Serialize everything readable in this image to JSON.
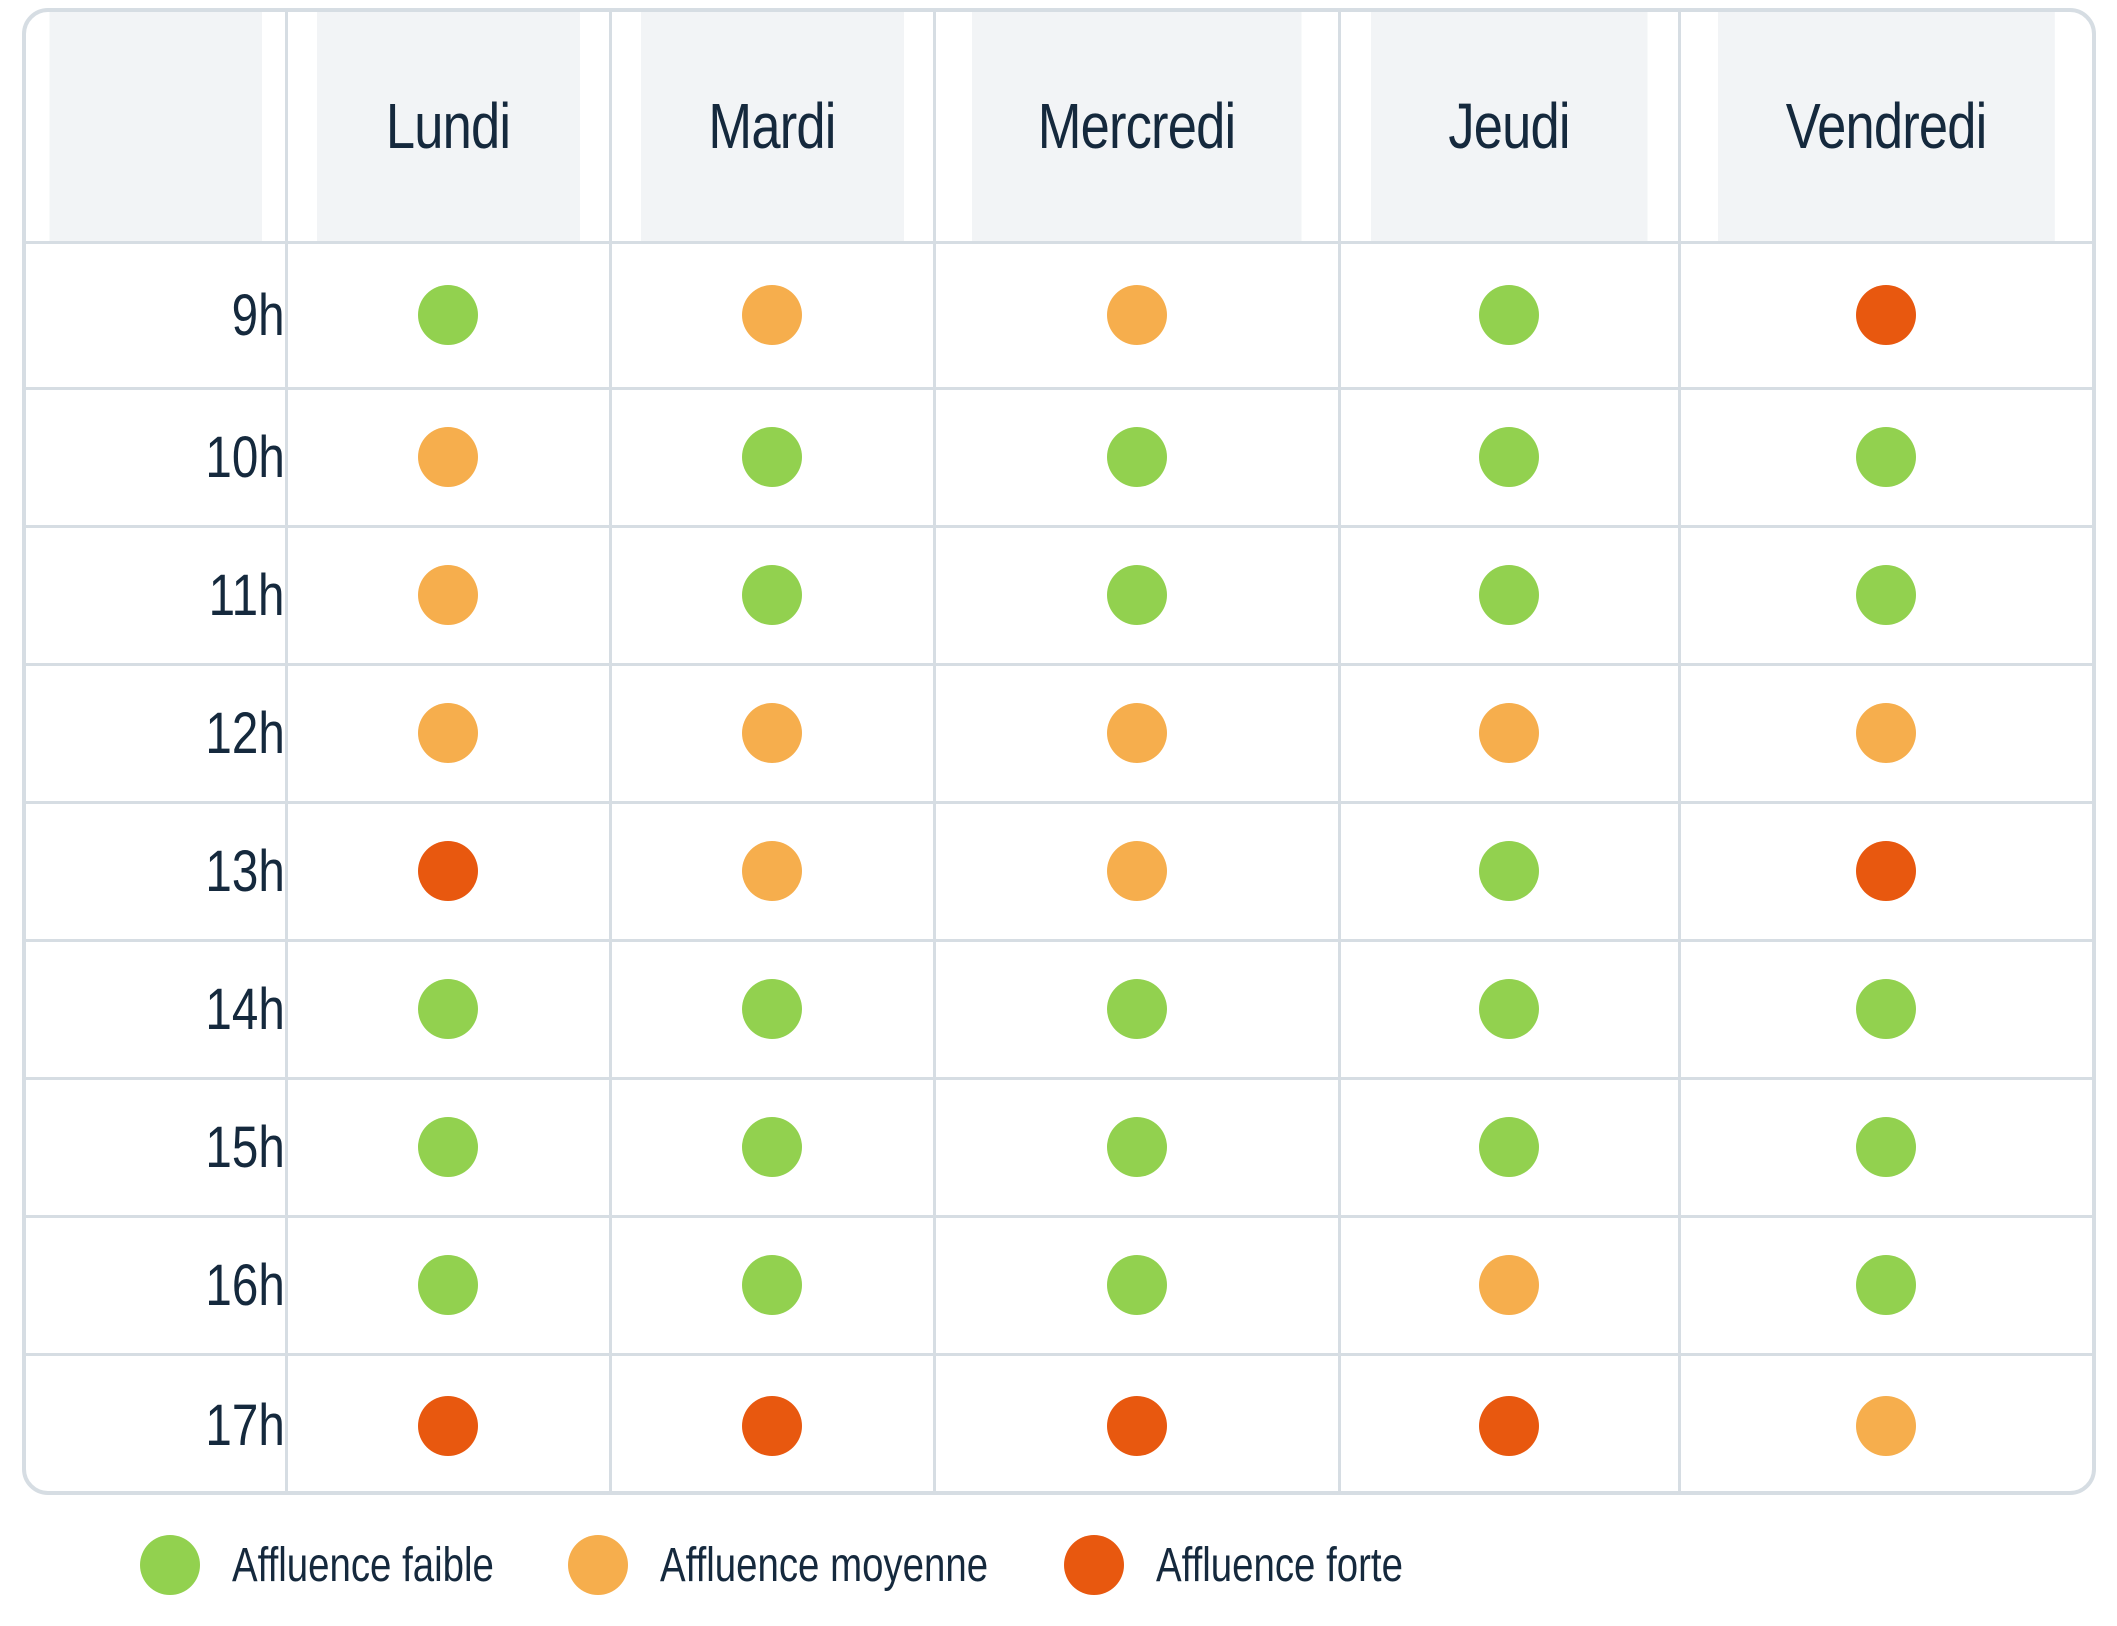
{
  "colors": {
    "faible": "#92d14f",
    "moyenne": "#f6ae4d",
    "forte": "#e8580f"
  },
  "table": {
    "days": [
      "Lundi",
      "Mardi",
      "Mercredi",
      "Jeudi",
      "Vendredi"
    ],
    "rows": [
      {
        "hour": "9h",
        "levels": [
          "faible",
          "moyenne",
          "moyenne",
          "faible",
          "forte"
        ]
      },
      {
        "hour": "10h",
        "levels": [
          "moyenne",
          "faible",
          "faible",
          "faible",
          "faible"
        ]
      },
      {
        "hour": "11h",
        "levels": [
          "moyenne",
          "faible",
          "faible",
          "faible",
          "faible"
        ]
      },
      {
        "hour": "12h",
        "levels": [
          "moyenne",
          "moyenne",
          "moyenne",
          "moyenne",
          "moyenne"
        ]
      },
      {
        "hour": "13h",
        "levels": [
          "forte",
          "moyenne",
          "moyenne",
          "faible",
          "forte"
        ]
      },
      {
        "hour": "14h",
        "levels": [
          "faible",
          "faible",
          "faible",
          "faible",
          "faible"
        ]
      },
      {
        "hour": "15h",
        "levels": [
          "faible",
          "faible",
          "faible",
          "faible",
          "faible"
        ]
      },
      {
        "hour": "16h",
        "levels": [
          "faible",
          "faible",
          "faible",
          "moyenne",
          "faible"
        ]
      },
      {
        "hour": "17h",
        "levels": [
          "forte",
          "forte",
          "forte",
          "forte",
          "moyenne"
        ]
      }
    ]
  },
  "legend": [
    {
      "level": "faible",
      "label": "Affluence faible"
    },
    {
      "level": "moyenne",
      "label": "Affluence moyenne"
    },
    {
      "level": "forte",
      "label": "Affluence forte"
    }
  ]
}
